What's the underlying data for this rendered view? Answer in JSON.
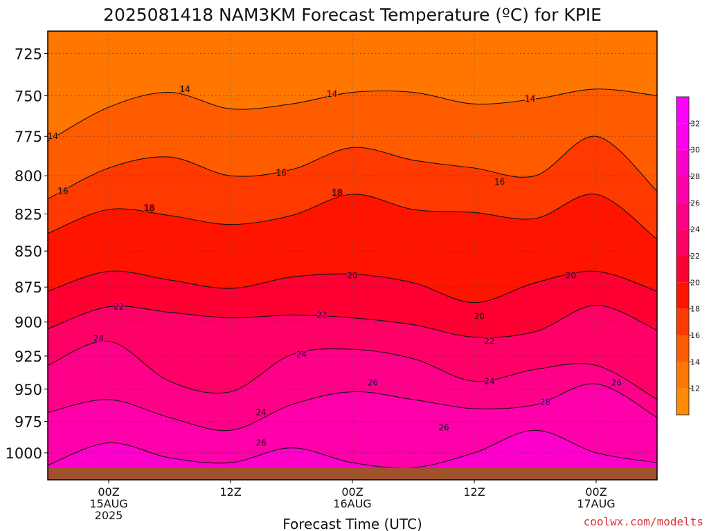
{
  "chart_data": {
    "type": "heatmap",
    "title": "2025081418 NAM3KM Forecast Temperature (ºC) for KPIE",
    "xlabel": "Forecast Time (UTC)",
    "ylabel": "",
    "x_ticks": [
      {
        "hour": 6,
        "lines": [
          "00Z",
          "15AUG",
          "2025"
        ]
      },
      {
        "hour": 18,
        "lines": [
          "12Z",
          "",
          ""
        ]
      },
      {
        "hour": 30,
        "lines": [
          "00Z",
          "16AUG",
          ""
        ]
      },
      {
        "hour": 42,
        "lines": [
          "12Z",
          "",
          ""
        ]
      },
      {
        "hour": 54,
        "lines": [
          "00Z",
          "17AUG",
          ""
        ]
      }
    ],
    "xlim": [
      0,
      60
    ],
    "y_ticks": [
      725,
      750,
      775,
      800,
      825,
      850,
      875,
      900,
      925,
      950,
      975,
      1000
    ],
    "ylim_pressure_hPa": [
      712,
      1022
    ],
    "y_scale": "log",
    "surface_pressure_hPa": 1012,
    "grid": true,
    "colorbar": {
      "ticks": [
        12,
        14,
        16,
        18,
        20,
        22,
        24,
        26,
        28,
        30,
        32
      ],
      "range": [
        10,
        34
      ],
      "colors": [
        "#ff8c00",
        "#ff7700",
        "#ff5c00",
        "#ff3a00",
        "#ff1400",
        "#ff0033",
        "#ff0066",
        "#ff0088",
        "#ff00aa",
        "#ff00cc",
        "#ff00ee",
        "#ff00ff"
      ]
    },
    "contour_levels": [
      14,
      16,
      18,
      20,
      22,
      24,
      26,
      28
    ],
    "contour_labels": [
      {
        "t": 14,
        "hour": 0.5,
        "p": 775
      },
      {
        "t": 14,
        "hour": 13.5,
        "p": 746
      },
      {
        "t": 14,
        "hour": 28,
        "p": 749
      },
      {
        "t": 14,
        "hour": 47.5,
        "p": 752
      },
      {
        "t": 16,
        "hour": 1.5,
        "p": 810
      },
      {
        "t": 16,
        "hour": 23,
        "p": 798
      },
      {
        "t": 16,
        "hour": 44.5,
        "p": 804
      },
      {
        "t": 18,
        "hour": 10,
        "p": 821
      },
      {
        "t": 18,
        "hour": 28.5,
        "p": 811
      },
      {
        "t": 20,
        "hour": 30,
        "p": 867
      },
      {
        "t": 20,
        "hour": 42.5,
        "p": 896
      },
      {
        "t": 20,
        "hour": 51.5,
        "p": 867
      },
      {
        "t": 22,
        "hour": 7,
        "p": 889
      },
      {
        "t": 22,
        "hour": 27,
        "p": 895
      },
      {
        "t": 22,
        "hour": 43.5,
        "p": 914
      },
      {
        "t": 24,
        "hour": 5,
        "p": 912
      },
      {
        "t": 24,
        "hour": 25,
        "p": 924
      },
      {
        "t": 24,
        "hour": 21,
        "p": 968
      },
      {
        "t": 24,
        "hour": 43.5,
        "p": 944
      },
      {
        "t": 26,
        "hour": 32,
        "p": 945
      },
      {
        "t": 26,
        "hour": 21,
        "p": 992
      },
      {
        "t": 26,
        "hour": 39,
        "p": 980
      },
      {
        "t": 26,
        "hour": 56,
        "p": 945
      },
      {
        "t": 28,
        "hour": 49,
        "p": 960
      },
      {
        "t": 28,
        "hour": 20,
        "p": 1017
      }
    ],
    "isotherm_pressure_hPa": [
      {
        "t": 14,
        "hour": [
          0,
          6,
          12,
          18,
          24,
          30,
          36,
          42,
          48,
          54,
          60
        ],
        "p": [
          778,
          757,
          748,
          758,
          755,
          748,
          748,
          755,
          752,
          746,
          750
        ]
      },
      {
        "t": 16,
        "hour": [
          0,
          6,
          12,
          18,
          24,
          30,
          36,
          42,
          48,
          54,
          60
        ],
        "p": [
          815,
          795,
          788,
          800,
          796,
          782,
          790,
          795,
          800,
          775,
          810
        ]
      },
      {
        "t": 18,
        "hour": [
          0,
          6,
          12,
          18,
          24,
          30,
          36,
          42,
          48,
          54,
          60
        ],
        "p": [
          838,
          822,
          826,
          832,
          826,
          812,
          822,
          824,
          828,
          812,
          842
        ]
      },
      {
        "t": 20,
        "hour": [
          0,
          6,
          12,
          18,
          24,
          30,
          36,
          42,
          48,
          54,
          60
        ],
        "p": [
          878,
          864,
          870,
          876,
          868,
          866,
          872,
          886,
          872,
          864,
          878
        ]
      },
      {
        "t": 22,
        "hour": [
          0,
          6,
          12,
          18,
          24,
          30,
          36,
          42,
          48,
          54,
          60
        ],
        "p": [
          905,
          889,
          893,
          897,
          895,
          897,
          902,
          911,
          907,
          888,
          906
        ]
      },
      {
        "t": 24,
        "hour": [
          0,
          6,
          12,
          18,
          24,
          30,
          36,
          42,
          48,
          54,
          60
        ],
        "p": [
          932,
          914,
          944,
          952,
          924,
          920,
          927,
          944,
          935,
          932,
          958
        ]
      },
      {
        "t": 26,
        "hour": [
          0,
          6,
          12,
          18,
          24,
          30,
          36,
          42,
          48,
          54,
          60
        ],
        "p": [
          968,
          958,
          972,
          982,
          962,
          952,
          958,
          965,
          962,
          946,
          972
        ]
      },
      {
        "t": 28,
        "hour": [
          0,
          6,
          12,
          18,
          24,
          30,
          36,
          42,
          48,
          54,
          60
        ],
        "p": [
          1010,
          992,
          1004,
          1008,
          996,
          1008,
          1012,
          1000,
          982,
          1000,
          1008
        ]
      }
    ],
    "credit": "coolwx.com/modelts"
  }
}
